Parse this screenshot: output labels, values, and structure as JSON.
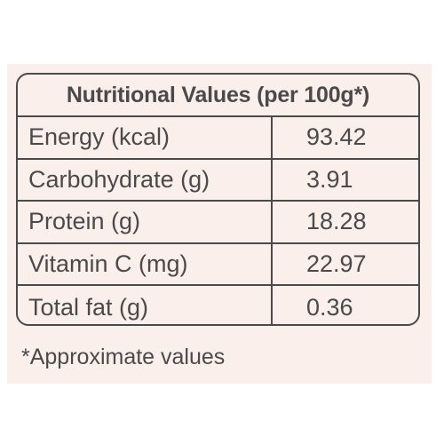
{
  "table": {
    "title": "Nutritional Values (per 100g*)",
    "rows": [
      {
        "label": "Energy (kcal)",
        "value": "93.42"
      },
      {
        "label": "Carbohydrate (g)",
        "value": "3.91"
      },
      {
        "label": "Protein (g)",
        "value": "18.28"
      },
      {
        "label": "Vitamin C (mg)",
        "value": "22.97"
      },
      {
        "label": "Total fat (g)",
        "value": "0.36"
      }
    ]
  },
  "footnote": "*Approximate values",
  "colors": {
    "panel_background": "#fbefec",
    "text": "#4a4a4a",
    "border": "#4a4a4a"
  }
}
